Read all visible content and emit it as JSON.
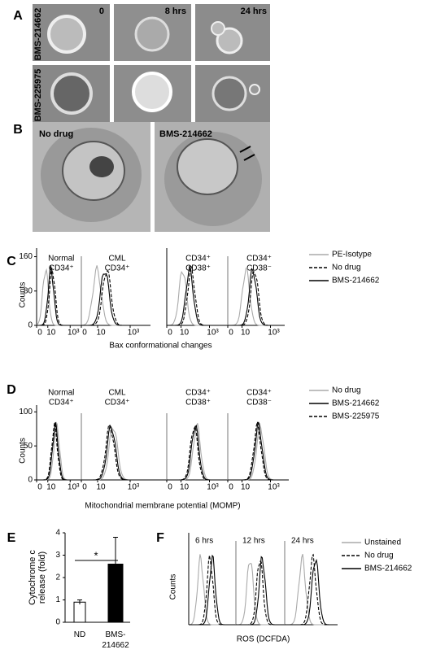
{
  "panel_labels": [
    "A",
    "B",
    "C",
    "D",
    "E",
    "F"
  ],
  "panel_a": {
    "time_labels": [
      "0",
      "8 hrs",
      "24 hrs"
    ],
    "row_labels": [
      "BMS-214662",
      "BMS-225975"
    ]
  },
  "panel_b": {
    "image_labels": [
      "No drug",
      "BMS-214662"
    ]
  },
  "chart_data": [
    {
      "type": "histogram-overlay",
      "xlabel": "Bax conformational changes",
      "ylabel": "Counts",
      "subplots": [
        [
          "Normal",
          "CD34⁺"
        ],
        [
          "CML",
          "CD34⁺"
        ],
        [
          "CD34⁺",
          "CD38⁺"
        ],
        [
          "CD34⁺",
          "CD38⁻"
        ]
      ],
      "xscale": "log",
      "xlim": [
        0,
        10000
      ],
      "xticks": [
        0,
        10,
        {
          "value": 1000,
          "label": "10³"
        }
      ],
      "ylim": [
        0,
        180
      ],
      "yticks": [
        0,
        80,
        160
      ],
      "series": [
        {
          "name": "PE-Isotype",
          "color": "#aaaaaa",
          "dash": "solid"
        },
        {
          "name": "No drug",
          "color": "#000000",
          "dash": "dashed"
        },
        {
          "name": "BMS-214662",
          "color": "#000000",
          "dash": "solid"
        }
      ]
    },
    {
      "type": "histogram-overlay",
      "xlabel": "Mitochondrial membrane potential (MOMP)",
      "ylabel": "Counts",
      "subplots": [
        [
          "Normal",
          "CD34⁺"
        ],
        [
          "CML",
          "CD34⁺"
        ],
        [
          "CD34⁺",
          "CD38⁺"
        ],
        [
          "CD34⁺",
          "CD38⁻"
        ]
      ],
      "xscale": "log",
      "xlim": [
        0,
        10000
      ],
      "xticks": [
        0,
        10,
        {
          "value": 1000,
          "label": "10³"
        }
      ],
      "ylim": [
        0,
        110
      ],
      "yticks": [
        0,
        50,
        100
      ],
      "series": [
        {
          "name": "No drug",
          "color": "#aaaaaa",
          "dash": "solid"
        },
        {
          "name": "BMS-214662",
          "color": "#000000",
          "dash": "solid"
        },
        {
          "name": "BMS-225975",
          "color": "#000000",
          "dash": "dashed"
        }
      ]
    },
    {
      "type": "bar",
      "ylabel": [
        "Cytochrome c",
        "release (fold)"
      ],
      "categories": [
        "ND",
        "BMS-\n214662"
      ],
      "values": [
        0.9,
        2.6
      ],
      "errors": [
        0.1,
        1.2
      ],
      "colors": [
        "#ffffff",
        "#000000"
      ],
      "ylim": [
        0,
        4
      ],
      "yticks": [
        0,
        1,
        2,
        3,
        4
      ],
      "annotation": "*"
    },
    {
      "type": "histogram-overlay",
      "xlabel": "ROS (DCFDA)",
      "ylabel": "Counts",
      "subplots": [
        "6 hrs",
        "12 hrs",
        "24 hrs"
      ],
      "series": [
        {
          "name": "Unstained",
          "color": "#aaaaaa",
          "dash": "solid"
        },
        {
          "name": "No drug",
          "color": "#000000",
          "dash": "dashed"
        },
        {
          "name": "BMS-214662",
          "color": "#000000",
          "dash": "solid"
        }
      ]
    }
  ]
}
